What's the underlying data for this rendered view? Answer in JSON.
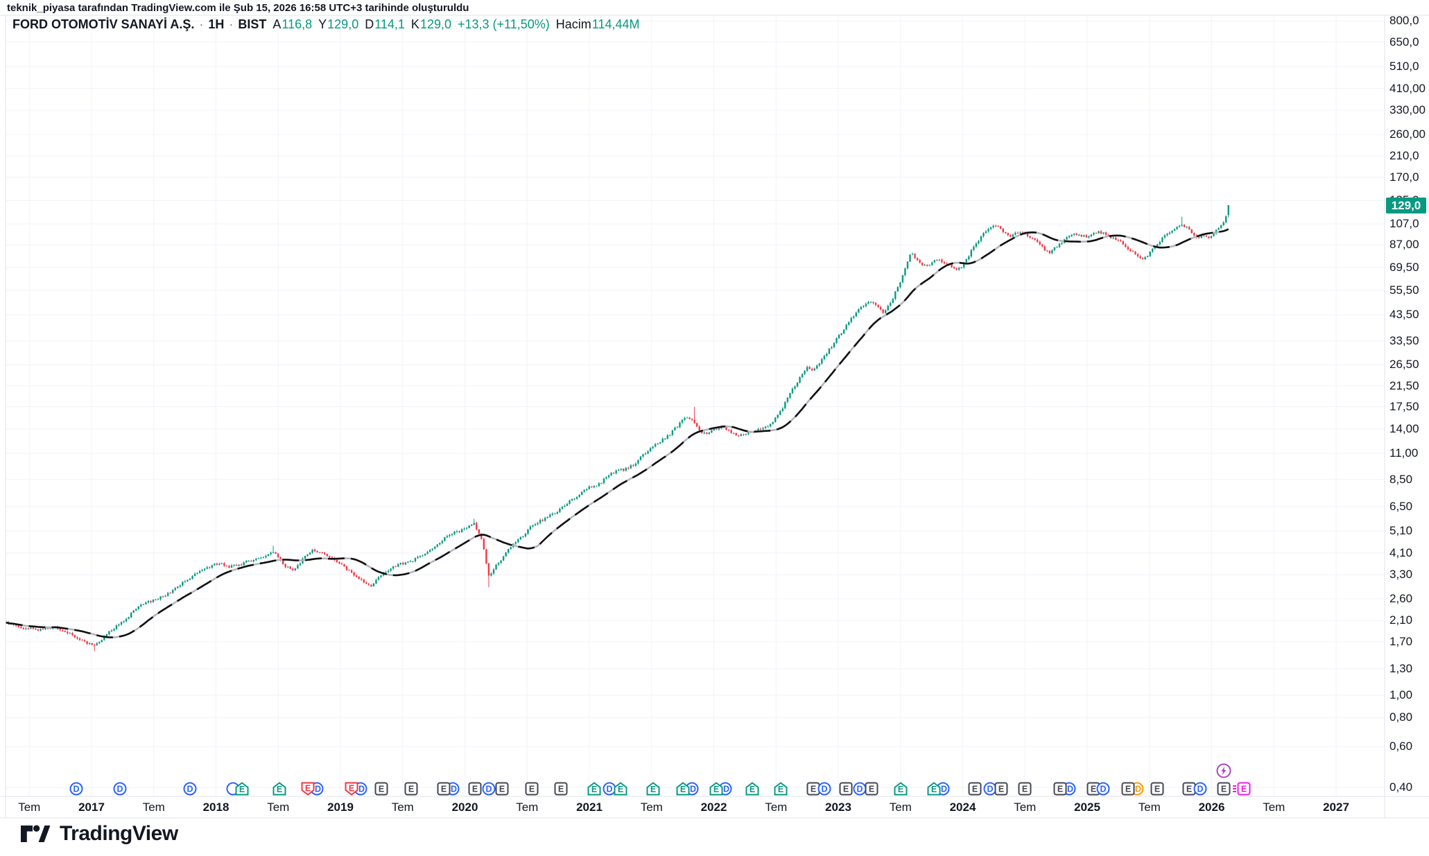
{
  "attribution": "teknik_piyasa tarafından TradingView.com ile Şub 15, 2026 16:58 UTC+3 tarihinde oluşturuldu",
  "legend": {
    "title": "FORD OTOMOTİV SANAYİ A.Ş.",
    "sep": "·",
    "interval": "1H",
    "exchange": "BIST",
    "open_label": "A",
    "open_value": "116,8",
    "high_label": "Y",
    "high_value": "129,0",
    "low_label": "D",
    "low_value": "114,1",
    "close_label": "K",
    "close_value": "129,0",
    "change": "+13,3 (+11,50%)",
    "volume_label": "Hacim",
    "volume_value": "114,44M"
  },
  "price_badge": "129,0",
  "logo_text": "TradingView",
  "colors": {
    "up": "#089981",
    "down": "#F23645",
    "ma": "#111111",
    "ma_gap": "#B2B5BE",
    "grid": "#F0F3FA",
    "border": "#E0E3EB",
    "text": "#131722",
    "dividend": "#2962FF",
    "earnings_up": "#089981",
    "earnings_down": "#F23645",
    "earnings_flat": "#434651",
    "future": "#EB1CEB",
    "lightning": "#AB47BC",
    "orange": "#FF9800"
  },
  "chart_data": {
    "type": "candlestick",
    "scale": "log",
    "title": "FORD OTOMOTİV SANAYİ A.Ş. · 1H · BIST",
    "up_color": "#089981",
    "down_color": "#F23645",
    "grid": true,
    "y_axis": {
      "ticks": [
        {
          "v": 800,
          "label": "800,0"
        },
        {
          "v": 650,
          "label": "650,0"
        },
        {
          "v": 510,
          "label": "510,0"
        },
        {
          "v": 410,
          "label": "410,00"
        },
        {
          "v": 330,
          "label": "330,00"
        },
        {
          "v": 260,
          "label": "260,00"
        },
        {
          "v": 210,
          "label": "210,0"
        },
        {
          "v": 170,
          "label": "170,0"
        },
        {
          "v": 135,
          "label": "135,0"
        },
        {
          "v": 107,
          "label": "107,0"
        },
        {
          "v": 87,
          "label": "87,00"
        },
        {
          "v": 69.5,
          "label": "69,50"
        },
        {
          "v": 55.5,
          "label": "55,50"
        },
        {
          "v": 43.5,
          "label": "43,50"
        },
        {
          "v": 33.5,
          "label": "33,50"
        },
        {
          "v": 26.5,
          "label": "26,50"
        },
        {
          "v": 21.5,
          "label": "21,50"
        },
        {
          "v": 17.5,
          "label": "17,50"
        },
        {
          "v": 14,
          "label": "14,00"
        },
        {
          "v": 11,
          "label": "11,00"
        },
        {
          "v": 8.5,
          "label": "8,50"
        },
        {
          "v": 6.5,
          "label": "6,50"
        },
        {
          "v": 5.1,
          "label": "5,10"
        },
        {
          "v": 4.1,
          "label": "4,10"
        },
        {
          "v": 3.3,
          "label": "3,30"
        },
        {
          "v": 2.6,
          "label": "2,60"
        },
        {
          "v": 2.1,
          "label": "2,10"
        },
        {
          "v": 1.7,
          "label": "1,70"
        },
        {
          "v": 1.3,
          "label": "1,30"
        },
        {
          "v": 1.0,
          "label": "1,00"
        },
        {
          "v": 0.8,
          "label": "0,80"
        },
        {
          "v": 0.6,
          "label": "0,60"
        },
        {
          "v": 0.4,
          "label": "0,40"
        }
      ]
    },
    "x_axis": {
      "labels": [
        {
          "t": 2016.5,
          "label": "Tem"
        },
        {
          "t": 2017,
          "label": "2017"
        },
        {
          "t": 2017.5,
          "label": "Tem"
        },
        {
          "t": 2018,
          "label": "2018"
        },
        {
          "t": 2018.5,
          "label": "Tem"
        },
        {
          "t": 2019,
          "label": "2019"
        },
        {
          "t": 2019.5,
          "label": "Tem"
        },
        {
          "t": 2020,
          "label": "2020"
        },
        {
          "t": 2020.5,
          "label": "Tem"
        },
        {
          "t": 2021,
          "label": "2021"
        },
        {
          "t": 2021.5,
          "label": "Tem"
        },
        {
          "t": 2022,
          "label": "2022"
        },
        {
          "t": 2022.5,
          "label": "Tem"
        },
        {
          "t": 2023,
          "label": "2023"
        },
        {
          "t": 2023.5,
          "label": "Tem"
        },
        {
          "t": 2024,
          "label": "2024"
        },
        {
          "t": 2024.5,
          "label": "Tem"
        },
        {
          "t": 2025,
          "label": "2025"
        },
        {
          "t": 2025.5,
          "label": "Tem"
        },
        {
          "t": 2026,
          "label": "2026"
        },
        {
          "t": 2026.5,
          "label": "Tem"
        },
        {
          "t": 2027,
          "label": "2027"
        }
      ]
    },
    "series_anchors": [
      [
        2016.29,
        2.08
      ],
      [
        2016.43,
        1.95
      ],
      [
        2016.57,
        1.92
      ],
      [
        2016.71,
        1.97
      ],
      [
        2016.82,
        1.85
      ],
      [
        2016.93,
        1.7
      ],
      [
        2017.02,
        1.64
      ],
      [
        2017.1,
        1.78
      ],
      [
        2017.18,
        1.95
      ],
      [
        2017.27,
        2.1
      ],
      [
        2017.38,
        2.45
      ],
      [
        2017.49,
        2.55
      ],
      [
        2017.6,
        2.7
      ],
      [
        2017.71,
        3.0
      ],
      [
        2017.84,
        3.35
      ],
      [
        2017.94,
        3.55
      ],
      [
        2018.02,
        3.7
      ],
      [
        2018.1,
        3.55
      ],
      [
        2018.19,
        3.65
      ],
      [
        2018.27,
        3.8
      ],
      [
        2018.35,
        3.85
      ],
      [
        2018.46,
        4.15
      ],
      [
        2018.55,
        3.6
      ],
      [
        2018.63,
        3.45
      ],
      [
        2018.72,
        4.0
      ],
      [
        2018.78,
        4.25
      ],
      [
        2018.86,
        4.05
      ],
      [
        2018.94,
        3.9
      ],
      [
        2019.02,
        3.6
      ],
      [
        2019.11,
        3.3
      ],
      [
        2019.19,
        3.05
      ],
      [
        2019.25,
        2.95
      ],
      [
        2019.33,
        3.3
      ],
      [
        2019.41,
        3.55
      ],
      [
        2019.5,
        3.7
      ],
      [
        2019.58,
        3.8
      ],
      [
        2019.66,
        4.0
      ],
      [
        2019.75,
        4.3
      ],
      [
        2019.83,
        4.7
      ],
      [
        2019.91,
        5.0
      ],
      [
        2020.0,
        5.2
      ],
      [
        2020.07,
        5.5
      ],
      [
        2020.14,
        4.6
      ],
      [
        2020.19,
        3.25
      ],
      [
        2020.25,
        3.6
      ],
      [
        2020.3,
        3.9
      ],
      [
        2020.37,
        4.4
      ],
      [
        2020.44,
        4.7
      ],
      [
        2020.53,
        5.3
      ],
      [
        2020.6,
        5.6
      ],
      [
        2020.67,
        5.9
      ],
      [
        2020.73,
        6.1
      ],
      [
        2020.81,
        6.6
      ],
      [
        2020.88,
        7.1
      ],
      [
        2020.94,
        7.5
      ],
      [
        2021.01,
        7.9
      ],
      [
        2021.08,
        8.1
      ],
      [
        2021.16,
        8.9
      ],
      [
        2021.22,
        9.3
      ],
      [
        2021.29,
        9.4
      ],
      [
        2021.36,
        9.9
      ],
      [
        2021.43,
        10.8
      ],
      [
        2021.5,
        11.6
      ],
      [
        2021.57,
        12.4
      ],
      [
        2021.64,
        13.2
      ],
      [
        2021.71,
        14.5
      ],
      [
        2021.78,
        15.8
      ],
      [
        2021.84,
        15.2
      ],
      [
        2021.88,
        13.8
      ],
      [
        2021.94,
        13.4
      ],
      [
        2021.99,
        13.9
      ],
      [
        2022.05,
        14.3
      ],
      [
        2022.1,
        14.0
      ],
      [
        2022.16,
        13.4
      ],
      [
        2022.21,
        13.1
      ],
      [
        2022.27,
        13.6
      ],
      [
        2022.33,
        13.8
      ],
      [
        2022.38,
        14.0
      ],
      [
        2022.44,
        14.4
      ],
      [
        2022.49,
        15.5
      ],
      [
        2022.55,
        17.2
      ],
      [
        2022.6,
        19.5
      ],
      [
        2022.66,
        22.0
      ],
      [
        2022.72,
        24.5
      ],
      [
        2022.75,
        26.0
      ],
      [
        2022.79,
        25.0
      ],
      [
        2022.84,
        26.5
      ],
      [
        2022.89,
        29.0
      ],
      [
        2022.95,
        32.0
      ],
      [
        2023.01,
        35.5
      ],
      [
        2023.06,
        39.0
      ],
      [
        2023.12,
        43.0
      ],
      [
        2023.17,
        46.0
      ],
      [
        2023.23,
        48.5
      ],
      [
        2023.27,
        50.0
      ],
      [
        2023.32,
        47.5
      ],
      [
        2023.36,
        44.5
      ],
      [
        2023.41,
        48.0
      ],
      [
        2023.45,
        53.0
      ],
      [
        2023.5,
        60.0
      ],
      [
        2023.54,
        70.0
      ],
      [
        2023.58,
        80.0
      ],
      [
        2023.63,
        76.0
      ],
      [
        2023.67,
        72.0
      ],
      [
        2023.72,
        71.0
      ],
      [
        2023.76,
        73.5
      ],
      [
        2023.81,
        75.5
      ],
      [
        2023.85,
        73.0
      ],
      [
        2023.9,
        71.5
      ],
      [
        2023.94,
        67.0
      ],
      [
        2023.99,
        70.0
      ],
      [
        2024.03,
        75.0
      ],
      [
        2024.07,
        82.0
      ],
      [
        2024.12,
        90.0
      ],
      [
        2024.16,
        97.0
      ],
      [
        2024.21,
        102.0
      ],
      [
        2024.25,
        106.0
      ],
      [
        2024.29,
        103.0
      ],
      [
        2024.33,
        98.0
      ],
      [
        2024.38,
        94.0
      ],
      [
        2024.42,
        97.5
      ],
      [
        2024.46,
        99.0
      ],
      [
        2024.51,
        96.5
      ],
      [
        2024.55,
        93.0
      ],
      [
        2024.6,
        90.0
      ],
      [
        2024.64,
        85.0
      ],
      [
        2024.69,
        80.0
      ],
      [
        2024.73,
        83.0
      ],
      [
        2024.78,
        88.0
      ],
      [
        2024.82,
        92.0
      ],
      [
        2024.87,
        95.0
      ],
      [
        2024.91,
        97.0
      ],
      [
        2024.95,
        95.5
      ],
      [
        2025.0,
        93.5
      ],
      [
        2025.04,
        97.0
      ],
      [
        2025.09,
        99.0
      ],
      [
        2025.13,
        97.5
      ],
      [
        2025.18,
        95.0
      ],
      [
        2025.22,
        92.0
      ],
      [
        2025.27,
        89.0
      ],
      [
        2025.31,
        85.5
      ],
      [
        2025.36,
        82.0
      ],
      [
        2025.4,
        78.5
      ],
      [
        2025.44,
        76.0
      ],
      [
        2025.49,
        79.0
      ],
      [
        2025.53,
        84.0
      ],
      [
        2025.58,
        90.0
      ],
      [
        2025.62,
        95.0
      ],
      [
        2025.67,
        99.0
      ],
      [
        2025.71,
        103.0
      ],
      [
        2025.76,
        107.0
      ],
      [
        2025.8,
        103.0
      ],
      [
        2025.83,
        99.0
      ],
      [
        2025.87,
        95.0
      ],
      [
        2025.9,
        93.5
      ],
      [
        2025.93,
        95.0
      ],
      [
        2025.97,
        93.0
      ],
      [
        2026.0,
        95.5
      ],
      [
        2026.02,
        99.0
      ],
      [
        2026.05,
        101.0
      ],
      [
        2026.07,
        104.0
      ],
      [
        2026.09,
        108.0
      ],
      [
        2026.11,
        113.0
      ],
      [
        2026.135,
        129.0
      ]
    ],
    "spikes": [
      {
        "t": 2017.02,
        "low": 1.55
      },
      {
        "t": 2018.46,
        "high": 4.4
      },
      {
        "t": 2020.07,
        "high": 5.75
      },
      {
        "t": 2020.19,
        "low": 2.92
      },
      {
        "t": 2021.84,
        "high": 17.45
      },
      {
        "t": 2025.76,
        "high": 115.0
      }
    ],
    "last_candle": {
      "open": 116.8,
      "high": 129.0,
      "low": 114.1,
      "close": 129.0
    },
    "overlay": {
      "type": "sma",
      "period": 22
    },
    "markers": [
      {
        "t": 2016.88,
        "kind": "dividend"
      },
      {
        "t": 2017.23,
        "kind": "dividend"
      },
      {
        "t": 2017.79,
        "kind": "dividend"
      },
      {
        "t": 2018.21,
        "kind": "earnings-up",
        "arc": "left"
      },
      {
        "t": 2018.51,
        "kind": "earnings-up"
      },
      {
        "t": 2018.74,
        "kind": "earnings-down",
        "arc": "right"
      },
      {
        "t": 2019.09,
        "kind": "earnings-down",
        "arc": "right"
      },
      {
        "t": 2019.33,
        "kind": "earnings-flat"
      },
      {
        "t": 2019.57,
        "kind": "earnings-flat"
      },
      {
        "t": 2019.83,
        "kind": "earnings-flat",
        "arc": "right"
      },
      {
        "t": 2020.08,
        "kind": "earnings-flat"
      },
      {
        "t": 2020.19,
        "kind": "dividend"
      },
      {
        "t": 2020.3,
        "kind": "earnings-flat"
      },
      {
        "t": 2020.54,
        "kind": "earnings-flat"
      },
      {
        "t": 2020.77,
        "kind": "earnings-flat"
      },
      {
        "t": 2021.04,
        "kind": "earnings-up"
      },
      {
        "t": 2021.16,
        "kind": "dividend"
      },
      {
        "t": 2021.25,
        "kind": "earnings-up"
      },
      {
        "t": 2021.51,
        "kind": "earnings-up"
      },
      {
        "t": 2021.75,
        "kind": "earnings-up",
        "arc": "right"
      },
      {
        "t": 2022.02,
        "kind": "earnings-up",
        "arc": "right"
      },
      {
        "t": 2022.31,
        "kind": "earnings-up"
      },
      {
        "t": 2022.54,
        "kind": "earnings-up"
      },
      {
        "t": 2022.8,
        "kind": "earnings-flat"
      },
      {
        "t": 2022.89,
        "kind": "dividend"
      },
      {
        "t": 2023.06,
        "kind": "earnings-flat"
      },
      {
        "t": 2023.17,
        "kind": "dividend"
      },
      {
        "t": 2023.27,
        "kind": "earnings-flat"
      },
      {
        "t": 2023.5,
        "kind": "earnings-up"
      },
      {
        "t": 2023.77,
        "kind": "earnings-up",
        "arc": "right"
      },
      {
        "t": 2024.1,
        "kind": "earnings-flat"
      },
      {
        "t": 2024.22,
        "kind": "dividend"
      },
      {
        "t": 2024.31,
        "kind": "earnings-flat"
      },
      {
        "t": 2024.5,
        "kind": "earnings-flat"
      },
      {
        "t": 2024.78,
        "kind": "earnings-flat",
        "arc": "right"
      },
      {
        "t": 2025.05,
        "kind": "earnings-flat"
      },
      {
        "t": 2025.13,
        "kind": "dividend"
      },
      {
        "t": 2025.33,
        "kind": "earnings-flat",
        "arc": "right",
        "arc_color": "orange"
      },
      {
        "t": 2025.56,
        "kind": "earnings-flat"
      },
      {
        "t": 2025.82,
        "kind": "earnings-flat"
      },
      {
        "t": 2025.91,
        "kind": "dividend"
      },
      {
        "t": 2026.1,
        "kind": "earnings-flat",
        "flag": "lightning"
      },
      {
        "t": 2026.26,
        "kind": "earnings-future"
      }
    ]
  }
}
